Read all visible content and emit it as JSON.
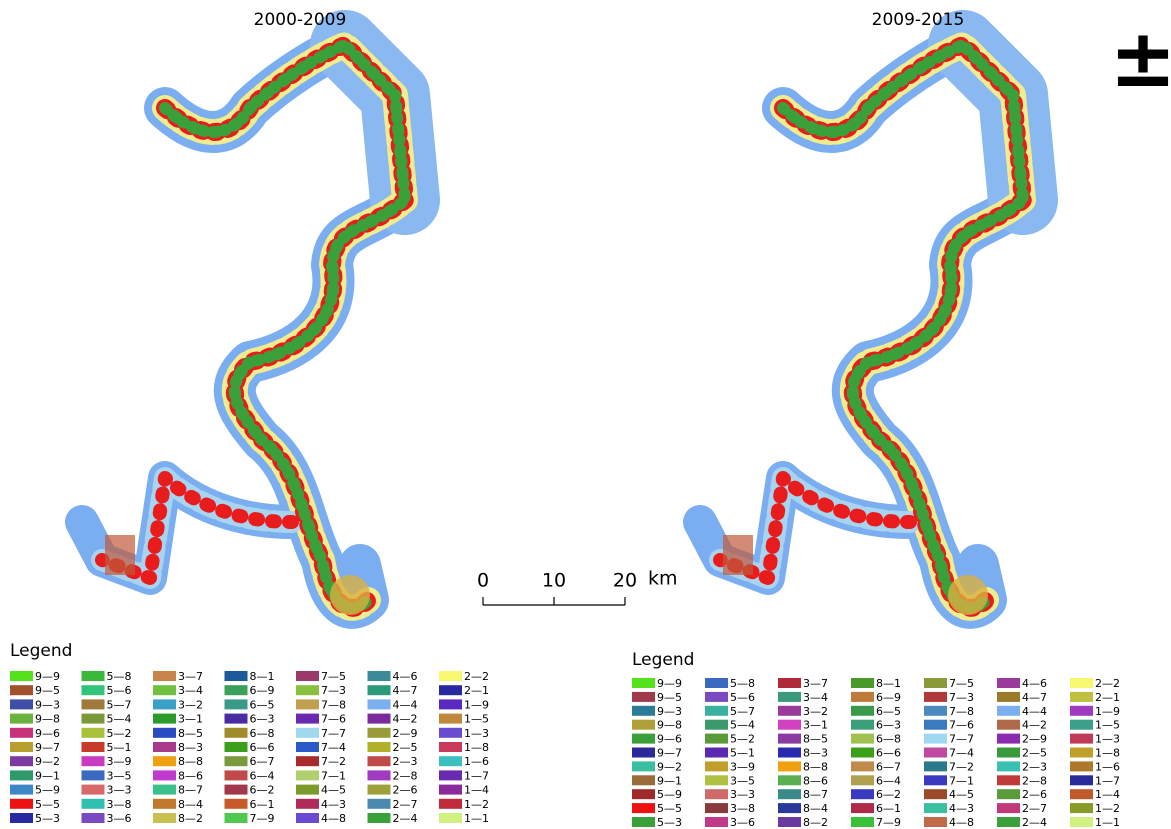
{
  "maps": [
    {
      "title": "2000-2009"
    },
    {
      "title": "2009-2015"
    }
  ],
  "north_arrow": "±",
  "scale_bar": {
    "labels": [
      "0",
      "10",
      "20"
    ],
    "unit": "km"
  },
  "legends": [
    {
      "title": "Legend",
      "items": [
        {
          "label": "9—9",
          "color": "#55e21a"
        },
        {
          "label": "9—5",
          "color": "#a0522d"
        },
        {
          "label": "9—3",
          "color": "#3f4fa8"
        },
        {
          "label": "9—8",
          "color": "#6cb23e"
        },
        {
          "label": "9—6",
          "color": "#c8327a"
        },
        {
          "label": "9—7",
          "color": "#b8a030"
        },
        {
          "label": "9—2",
          "color": "#7d3aa0"
        },
        {
          "label": "9—1",
          "color": "#2e9a6a"
        },
        {
          "label": "5—9",
          "color": "#3f86c8"
        },
        {
          "label": "5—5",
          "color": "#ee1111"
        },
        {
          "label": "5—3",
          "color": "#2a2aa0"
        },
        {
          "label": "5—8",
          "color": "#39b83a"
        },
        {
          "label": "5—6",
          "color": "#32c47a"
        },
        {
          "label": "5—7",
          "color": "#a07a3a"
        },
        {
          "label": "5—4",
          "color": "#7a9a3a"
        },
        {
          "label": "5—2",
          "color": "#a8c03a"
        },
        {
          "label": "5—1",
          "color": "#c83a2a"
        },
        {
          "label": "3—9",
          "color": "#c83ac0"
        },
        {
          "label": "3—5",
          "color": "#3a6ac0"
        },
        {
          "label": "3—3",
          "color": "#d86a6a"
        },
        {
          "label": "3—8",
          "color": "#30c0b0"
        },
        {
          "label": "3—6",
          "color": "#7a4ac0"
        },
        {
          "label": "3—7",
          "color": "#c8844a"
        },
        {
          "label": "3—4",
          "color": "#72c040"
        },
        {
          "label": "3—2",
          "color": "#3aa0c8"
        },
        {
          "label": "3—1",
          "color": "#2a9a2a"
        },
        {
          "label": "8—5",
          "color": "#2a4ac0"
        },
        {
          "label": "8—3",
          "color": "#a83a8a"
        },
        {
          "label": "8—8",
          "color": "#f0a010"
        },
        {
          "label": "8—6",
          "color": "#c03ad0"
        },
        {
          "label": "8—7",
          "color": "#3ac08a"
        },
        {
          "label": "8—4",
          "color": "#c0782a"
        },
        {
          "label": "8—2",
          "color": "#c8c050"
        },
        {
          "label": "8—1",
          "color": "#1a5a9a"
        },
        {
          "label": "6—9",
          "color": "#3aa05a"
        },
        {
          "label": "6—5",
          "color": "#3a9a8a"
        },
        {
          "label": "6—3",
          "color": "#4a2aa0"
        },
        {
          "label": "6—8",
          "color": "#a08a2a"
        },
        {
          "label": "6—6",
          "color": "#3aa01a"
        },
        {
          "label": "6—7",
          "color": "#7a9a3a"
        },
        {
          "label": "6—4",
          "color": "#c04a4a"
        },
        {
          "label": "6—2",
          "color": "#a03a4a"
        },
        {
          "label": "6—1",
          "color": "#c85a2a"
        },
        {
          "label": "7—9",
          "color": "#50c850"
        },
        {
          "label": "7—5",
          "color": "#9a3a6a"
        },
        {
          "label": "7—3",
          "color": "#8ac040"
        },
        {
          "label": "7—8",
          "color": "#c0a050"
        },
        {
          "label": "7—6",
          "color": "#6a2ab0"
        },
        {
          "label": "7—7",
          "color": "#a0d8f0"
        },
        {
          "label": "7—4",
          "color": "#2a5ac8"
        },
        {
          "label": "7—2",
          "color": "#a82a2a"
        },
        {
          "label": "7—1",
          "color": "#b0d070"
        },
        {
          "label": "4—5",
          "color": "#7a9a2a"
        },
        {
          "label": "4—3",
          "color": "#b02a5a"
        },
        {
          "label": "4—8",
          "color": "#6a4ad0"
        },
        {
          "label": "4—6",
          "color": "#3a8a9a"
        },
        {
          "label": "4—7",
          "color": "#2a9a7a"
        },
        {
          "label": "4—4",
          "color": "#7ab0f0"
        },
        {
          "label": "4—2",
          "color": "#7a2a9a"
        },
        {
          "label": "2—9",
          "color": "#9a9a3a"
        },
        {
          "label": "2—5",
          "color": "#b0b02a"
        },
        {
          "label": "2—3",
          "color": "#c04a4a"
        },
        {
          "label": "2—8",
          "color": "#a03ac0"
        },
        {
          "label": "2—6",
          "color": "#a0a03a"
        },
        {
          "label": "2—7",
          "color": "#4a8ab0"
        },
        {
          "label": "2—4",
          "color": "#3aa03a"
        },
        {
          "label": "2—2",
          "color": "#f8f870"
        },
        {
          "label": "2—1",
          "color": "#2a2aa0"
        },
        {
          "label": "1—9",
          "color": "#5a2ac0"
        },
        {
          "label": "1—5",
          "color": "#c0883a"
        },
        {
          "label": "1—3",
          "color": "#6a4ad0"
        },
        {
          "label": "1—8",
          "color": "#c83a5a"
        },
        {
          "label": "1—6",
          "color": "#3ac0c0"
        },
        {
          "label": "1—7",
          "color": "#6a2ab0"
        },
        {
          "label": "1—4",
          "color": "#8a2a9a"
        },
        {
          "label": "1—2",
          "color": "#c02a3a"
        },
        {
          "label": "1—1",
          "color": "#d0f080"
        }
      ]
    },
    {
      "title": "Legend",
      "items": [
        {
          "label": "9—9",
          "color": "#55e21a"
        },
        {
          "label": "9—5",
          "color": "#a03a4a"
        },
        {
          "label": "9—3",
          "color": "#2a7a9a"
        },
        {
          "label": "9—8",
          "color": "#b0a03a"
        },
        {
          "label": "9—6",
          "color": "#3aa03a"
        },
        {
          "label": "9—7",
          "color": "#2a2a9a"
        },
        {
          "label": "9—2",
          "color": "#3ac0a0"
        },
        {
          "label": "9—1",
          "color": "#9a6a3a"
        },
        {
          "label": "5—9",
          "color": "#a02a2a"
        },
        {
          "label": "5—5",
          "color": "#ee1111"
        },
        {
          "label": "5—3",
          "color": "#3aa03a"
        },
        {
          "label": "5—8",
          "color": "#3a6ac0"
        },
        {
          "label": "5—6",
          "color": "#7a4ac0"
        },
        {
          "label": "5—7",
          "color": "#3ab0a0"
        },
        {
          "label": "5—4",
          "color": "#3a9a6a"
        },
        {
          "label": "5—2",
          "color": "#5a9a3a"
        },
        {
          "label": "5—1",
          "color": "#5a2ab0"
        },
        {
          "label": "3—9",
          "color": "#c0a02a"
        },
        {
          "label": "3—5",
          "color": "#b0c040"
        },
        {
          "label": "3—3",
          "color": "#d06a6a"
        },
        {
          "label": "3—8",
          "color": "#8a3a3a"
        },
        {
          "label": "3—6",
          "color": "#c03a8a"
        },
        {
          "label": "3—7",
          "color": "#b02a3a"
        },
        {
          "label": "3—4",
          "color": "#3a9a7a"
        },
        {
          "label": "3—2",
          "color": "#9a3a9a"
        },
        {
          "label": "3—1",
          "color": "#d040c0"
        },
        {
          "label": "8—5",
          "color": "#8a3aa0"
        },
        {
          "label": "8—3",
          "color": "#2a2ab0"
        },
        {
          "label": "8—8",
          "color": "#f0a010"
        },
        {
          "label": "8—6",
          "color": "#5ab050"
        },
        {
          "label": "8—7",
          "color": "#3a8a8a"
        },
        {
          "label": "8—4",
          "color": "#2a3a9a"
        },
        {
          "label": "8—2",
          "color": "#6a3aa0"
        },
        {
          "label": "8—1",
          "color": "#4a9a2a"
        },
        {
          "label": "6—9",
          "color": "#c07a3a"
        },
        {
          "label": "6—5",
          "color": "#3a9a4a"
        },
        {
          "label": "6—3",
          "color": "#3aa07a"
        },
        {
          "label": "6—8",
          "color": "#a0c050"
        },
        {
          "label": "6—6",
          "color": "#3aa01a"
        },
        {
          "label": "6—7",
          "color": "#c08a4a"
        },
        {
          "label": "6—4",
          "color": "#b0a050"
        },
        {
          "label": "6—2",
          "color": "#3a3ac0"
        },
        {
          "label": "6—1",
          "color": "#b02a4a"
        },
        {
          "label": "7—9",
          "color": "#3ac03a"
        },
        {
          "label": "7—5",
          "color": "#8a9a3a"
        },
        {
          "label": "7—3",
          "color": "#b03a3a"
        },
        {
          "label": "7—8",
          "color": "#4a8ac0"
        },
        {
          "label": "7—6",
          "color": "#3a7ac0"
        },
        {
          "label": "7—7",
          "color": "#a0d8f0"
        },
        {
          "label": "7—4",
          "color": "#c04aa0"
        },
        {
          "label": "7—2",
          "color": "#2a7a8a"
        },
        {
          "label": "7—1",
          "color": "#3a3ac0"
        },
        {
          "label": "4—5",
          "color": "#9a4a2a"
        },
        {
          "label": "4—3",
          "color": "#3ac0a0"
        },
        {
          "label": "4—8",
          "color": "#c06a4a"
        },
        {
          "label": "4—6",
          "color": "#9a3a9a"
        },
        {
          "label": "4—7",
          "color": "#9a7a2a"
        },
        {
          "label": "4—4",
          "color": "#7ab0f0"
        },
        {
          "label": "4—2",
          "color": "#b06a4a"
        },
        {
          "label": "2—9",
          "color": "#8a2ab0"
        },
        {
          "label": "2—5",
          "color": "#3a9a3a"
        },
        {
          "label": "2—3",
          "color": "#3ac0b0"
        },
        {
          "label": "2—8",
          "color": "#c03a3a"
        },
        {
          "label": "2—6",
          "color": "#5a9a3a"
        },
        {
          "label": "2—7",
          "color": "#c03a7a"
        },
        {
          "label": "2—4",
          "color": "#3aa03a"
        },
        {
          "label": "2—2",
          "color": "#f8f870"
        },
        {
          "label": "2—1",
          "color": "#c0c040"
        },
        {
          "label": "1—9",
          "color": "#a03ac0"
        },
        {
          "label": "1—5",
          "color": "#3aa08a"
        },
        {
          "label": "1—3",
          "color": "#c03a5a"
        },
        {
          "label": "1—8",
          "color": "#c0a02a"
        },
        {
          "label": "1—6",
          "color": "#b0782a"
        },
        {
          "label": "1—7",
          "color": "#2a2a9a"
        },
        {
          "label": "1—4",
          "color": "#c05a2a"
        },
        {
          "label": "1—2",
          "color": "#8a9a2a"
        },
        {
          "label": "1—1",
          "color": "#d0f080"
        }
      ]
    }
  ]
}
